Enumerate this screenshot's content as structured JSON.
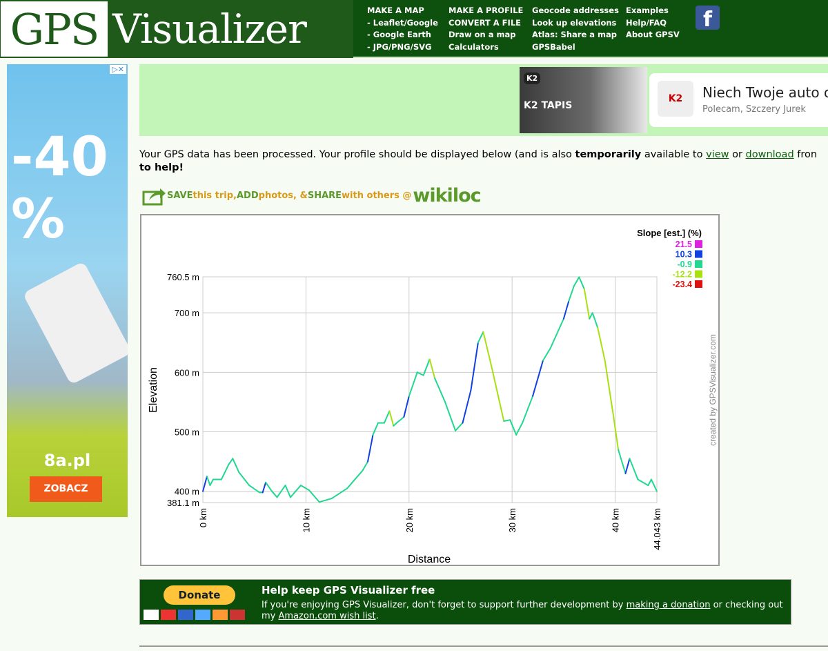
{
  "header": {
    "logo_gps": "GPS",
    "logo_visualizer": "Visualizer",
    "nav_columns": [
      [
        "MAKE A MAP",
        "- Leaflet/Google",
        "- Google Earth",
        "- JPG/PNG/SVG"
      ],
      [
        "MAKE A PROFILE",
        "CONVERT A FILE",
        "Draw on a map",
        "Calculators"
      ],
      [
        "Geocode addresses",
        "Look up elevations",
        "Atlas: Share a map",
        "GPSBabel"
      ],
      [
        "Examples",
        "Help/FAQ",
        "About GPSV"
      ]
    ],
    "facebook_icon": "facebook-icon"
  },
  "left_ad": {
    "big_text": "-40\n%",
    "brand": "8a.pl",
    "button": "ZOBACZ",
    "ad_choices": "▷✕"
  },
  "top_ad": {
    "tag": "K2",
    "product": "K2 TAPIS",
    "headline": "Niech Twoje auto o",
    "sub": "Polecam, Szczery Jurek",
    "logo": "K2"
  },
  "message": {
    "part1": "Your GPS data has been processed. Your profile should be displayed below (and is also ",
    "bold": "temporarily",
    "part2": " available to ",
    "view_link": "view",
    "or": " or ",
    "download_link": "download",
    "part3": " fron",
    "line2": "to help!"
  },
  "wikiloc": {
    "save": "SAVE",
    "t1": " this trip, ",
    "add": "ADD",
    "t2": " photos, & ",
    "share": "SHARE",
    "t3": " with others @",
    "brand": "wikiloc"
  },
  "chart_data": {
    "type": "line",
    "xlabel": "Distance",
    "ylabel": "Elevation",
    "credit": "created by GPSVisualizer.com",
    "xlim": [
      0,
      44.043
    ],
    "ylim": [
      381.1,
      760.5
    ],
    "x_ticks": [
      "0 km",
      "10 km",
      "20 km",
      "30 km",
      "40 km",
      "44.043 km"
    ],
    "x_tick_values": [
      0,
      10,
      20,
      30,
      40,
      44.043
    ],
    "y_ticks": [
      "381.1 m",
      "400 m",
      "500 m",
      "600 m",
      "700 m",
      "760.5 m"
    ],
    "y_tick_values": [
      381.1,
      400,
      500,
      600,
      700,
      760.5
    ],
    "grid": true,
    "legend": {
      "title": "Slope [est.] (%)",
      "placement": "top-right",
      "entries": [
        {
          "label": "21.5",
          "color": "#e020e0"
        },
        {
          "label": "10.3",
          "color": "#1040e0"
        },
        {
          "label": "-0.9",
          "color": "#20d890"
        },
        {
          "label": "-12.2",
          "color": "#a8e010"
        },
        {
          "label": "-23.4",
          "color": "#e01010"
        }
      ]
    },
    "x": [
      0,
      0.4,
      0.7,
      1,
      1.8,
      2.5,
      2.9,
      3.5,
      4.5,
      5.5,
      5.8,
      6.1,
      6.7,
      7.2,
      8,
      8.5,
      9.5,
      10.3,
      11.3,
      12.5,
      14,
      15.5,
      16,
      16.5,
      17,
      17.6,
      18.1,
      18.5,
      18.8,
      19.5,
      20,
      20.8,
      21.4,
      22,
      22.5,
      23.5,
      24.5,
      25.2,
      26,
      26.7,
      27.2,
      28,
      29.2,
      29.8,
      30.4,
      31,
      32,
      33,
      33.7,
      35,
      35.5,
      36,
      36.5,
      37,
      37.5,
      37.8,
      38.3,
      39,
      39.8,
      40.3,
      41,
      41.4,
      42.2,
      43.2,
      43.5,
      44.043
    ],
    "y": [
      400,
      425,
      410,
      420,
      420,
      445,
      455,
      432,
      410,
      398,
      398,
      415,
      400,
      390,
      410,
      390,
      410,
      402,
      382,
      388,
      405,
      435,
      450,
      495,
      515,
      515,
      535,
      510,
      515,
      525,
      560,
      600,
      595,
      622,
      590,
      550,
      502,
      515,
      570,
      650,
      668,
      610,
      518,
      520,
      495,
      515,
      560,
      620,
      640,
      690,
      720,
      745,
      760,
      740,
      690,
      700,
      675,
      620,
      530,
      470,
      430,
      455,
      420,
      410,
      420,
      400
    ]
  },
  "donate": {
    "button": "Donate",
    "title": "Help keep GPS Visualizer free",
    "text1": "If you're enjoying GPS Visualizer, don't forget to support further development by ",
    "link1": "making a donation",
    "text2": " or checking out my ",
    "link2": "Amazon.com wish list",
    "text3": "."
  }
}
